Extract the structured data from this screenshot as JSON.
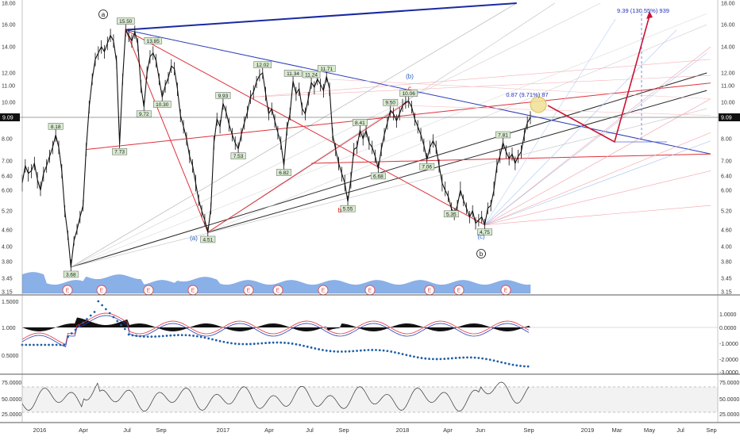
{
  "chart_data": {
    "type": "line",
    "current_price": "9.09",
    "y_axis_ticks": [
      "18.00",
      "16.00",
      "14.00",
      "12.00",
      "11.00",
      "10.00",
      "9.09",
      "8.00",
      "7.00",
      "6.40",
      "6.00",
      "5.20",
      "4.60",
      "4.00",
      "3.80",
      "3.45",
      "3.15"
    ],
    "x_axis_ticks": [
      "2016",
      "Apr",
      "Jul",
      "Sep",
      "2017",
      "Apr",
      "Jul",
      "Sep",
      "2018",
      "Apr",
      "Jun",
      "Sep",
      "2019",
      "Mar",
      "May",
      "Jul",
      "Sep"
    ],
    "series": [
      {
        "values": [
          [
            0,
            6.2
          ],
          [
            4,
            6.8
          ],
          [
            8,
            6.5
          ],
          [
            12,
            6.6
          ],
          [
            16,
            6.9
          ],
          [
            20,
            6.3
          ],
          [
            24,
            6.0
          ],
          [
            28,
            6.5
          ],
          [
            32,
            6.8
          ],
          [
            36,
            7.2
          ],
          [
            40,
            7.6
          ],
          [
            44,
            8.18
          ],
          [
            48,
            7.6
          ],
          [
            52,
            6.6
          ],
          [
            56,
            5.2
          ],
          [
            60,
            4.4
          ],
          [
            64,
            3.68
          ],
          [
            68,
            4.2
          ],
          [
            72,
            4.6
          ],
          [
            76,
            5.0
          ],
          [
            80,
            5.4
          ],
          [
            84,
            7.5
          ],
          [
            88,
            9.7
          ],
          [
            92,
            11.5
          ],
          [
            96,
            13.0
          ],
          [
            100,
            13.5
          ],
          [
            104,
            14.0
          ],
          [
            108,
            13.6
          ],
          [
            112,
            14.3
          ],
          [
            116,
            15.0
          ],
          [
            120,
            14.5
          ],
          [
            124,
            12.8
          ],
          [
            128,
            7.73
          ],
          [
            132,
            11.5
          ],
          [
            136,
            15.5
          ],
          [
            140,
            15.0
          ],
          [
            144,
            14.5
          ],
          [
            148,
            15.3
          ],
          [
            152,
            14.2
          ],
          [
            156,
            11.0
          ],
          [
            160,
            9.72
          ],
          [
            164,
            12.0
          ],
          [
            168,
            13.2
          ],
          [
            172,
            13.5
          ],
          [
            176,
            12.9
          ],
          [
            180,
            11.5
          ],
          [
            184,
            10.3
          ],
          [
            188,
            11.0
          ],
          [
            192,
            11.6
          ],
          [
            196,
            12.5
          ],
          [
            200,
            12.3
          ],
          [
            204,
            10.8
          ],
          [
            208,
            9.2
          ],
          [
            212,
            8.6
          ],
          [
            216,
            8.0
          ],
          [
            220,
            7.2
          ],
          [
            224,
            6.8
          ],
          [
            228,
            6.2
          ],
          [
            232,
            5.6
          ],
          [
            236,
            5.2
          ],
          [
            240,
            4.9
          ],
          [
            244,
            4.51
          ],
          [
            248,
            5.3
          ],
          [
            252,
            7.8
          ],
          [
            256,
            9.0
          ],
          [
            260,
            8.6
          ],
          [
            264,
            9.93
          ],
          [
            268,
            9.4
          ],
          [
            272,
            8.7
          ],
          [
            276,
            8.2
          ],
          [
            280,
            7.8
          ],
          [
            284,
            7.53
          ],
          [
            288,
            8.2
          ],
          [
            292,
            8.8
          ],
          [
            296,
            9.4
          ],
          [
            300,
            10.3
          ],
          [
            304,
            10.6
          ],
          [
            308,
            11.3
          ],
          [
            312,
            11.8
          ],
          [
            316,
            12.0
          ],
          [
            320,
            10.5
          ],
          [
            324,
            9.3
          ],
          [
            328,
            9.6
          ],
          [
            332,
            8.9
          ],
          [
            336,
            8.3
          ],
          [
            340,
            7.8
          ],
          [
            344,
            6.82
          ],
          [
            348,
            8.5
          ],
          [
            352,
            9.3
          ],
          [
            356,
            11.34
          ],
          [
            360,
            10.5
          ],
          [
            364,
            10.8
          ],
          [
            368,
            9.6
          ],
          [
            372,
            9.3
          ],
          [
            376,
            10.2
          ],
          [
            380,
            11.24
          ],
          [
            384,
            10.9
          ],
          [
            388,
            11.5
          ],
          [
            392,
            11.1
          ],
          [
            396,
            10.7
          ],
          [
            400,
            11.71
          ],
          [
            404,
            10.8
          ],
          [
            408,
            8.2
          ],
          [
            412,
            7.5
          ],
          [
            416,
            6.9
          ],
          [
            420,
            6.5
          ],
          [
            424,
            6.2
          ],
          [
            428,
            5.55
          ],
          [
            432,
            6.3
          ],
          [
            436,
            7.5
          ],
          [
            440,
            7.6
          ],
          [
            444,
            8.41
          ],
          [
            448,
            8.0
          ],
          [
            452,
            8.4
          ],
          [
            456,
            7.8
          ],
          [
            460,
            7.6
          ],
          [
            464,
            7.2
          ],
          [
            468,
            6.68
          ],
          [
            472,
            7.5
          ],
          [
            476,
            8.2
          ],
          [
            480,
            8.8
          ],
          [
            484,
            9.5
          ],
          [
            488,
            9.3
          ],
          [
            492,
            8.9
          ],
          [
            496,
            9.3
          ],
          [
            500,
            9.8
          ],
          [
            504,
            10.0
          ],
          [
            508,
            10.06
          ],
          [
            512,
            9.7
          ],
          [
            516,
            9.0
          ],
          [
            520,
            8.6
          ],
          [
            524,
            8.2
          ],
          [
            528,
            7.7
          ],
          [
            532,
            7.06
          ],
          [
            536,
            7.6
          ],
          [
            540,
            7.9
          ],
          [
            544,
            7.6
          ],
          [
            548,
            6.8
          ],
          [
            552,
            6.2
          ],
          [
            556,
            6.0
          ],
          [
            560,
            5.75
          ],
          [
            564,
            5.3
          ],
          [
            568,
            5.1
          ],
          [
            572,
            5.4
          ],
          [
            576,
            6.0
          ],
          [
            580,
            5.6
          ],
          [
            584,
            5.3
          ],
          [
            588,
            5.0
          ],
          [
            592,
            5.2
          ],
          [
            596,
            4.8
          ],
          [
            600,
            4.9
          ],
          [
            604,
            5.0
          ],
          [
            608,
            4.75
          ],
          [
            612,
            5.3
          ],
          [
            616,
            5.4
          ],
          [
            620,
            6.0
          ],
          [
            624,
            6.8
          ],
          [
            628,
            7.2
          ],
          [
            632,
            7.81
          ],
          [
            636,
            7.4
          ],
          [
            640,
            7.1
          ],
          [
            644,
            7.3
          ],
          [
            648,
            6.9
          ],
          [
            652,
            7.2
          ],
          [
            656,
            7.4
          ],
          [
            660,
            8.2
          ],
          [
            664,
            8.8
          ],
          [
            668,
            9.09
          ]
        ]
      }
    ],
    "price_labels": [
      "8.18",
      "3.68",
      "7.73",
      "15.50",
      "13.85",
      "9.72",
      "10.30",
      "4.51",
      "9.93",
      "7.53",
      "12.02",
      "6.82",
      "11.34",
      "11.24",
      "11.71",
      "5.55",
      "8.41",
      "6.68",
      "9.50",
      "10.06",
      "7.06",
      "5.35",
      "4.75",
      "7.81"
    ],
    "wave_labels": [
      "a",
      "(a)",
      "b",
      "c",
      "(b)",
      "(c)",
      "b"
    ],
    "projection_labels": [
      "9.39 (130.55%) 939",
      "0.87 (9.71%) 87"
    ],
    "earnings_markers": [
      "E",
      "E",
      "E",
      "E",
      "E",
      "E",
      "E",
      "E",
      "E",
      "E",
      "E",
      "E"
    ],
    "indicator_1_ticks_left": [
      "1.5000",
      "1.000",
      "0.5000"
    ],
    "indicator_1_ticks_right": [
      "1.0000",
      "0.0000",
      "-1.0000",
      "-2.0000",
      "-3.0000"
    ],
    "indicator_2_ticks_left": [
      "75.0000",
      "50.0000",
      "25.0000"
    ],
    "indicator_2_ticks_right": [
      "75.0000",
      "50.0000",
      "25.0000"
    ]
  },
  "colors": {
    "price_line": "#111111",
    "red_trend": "#e0303a",
    "blue_trend": "#2a3cb8",
    "black_trend": "#2b2b2b",
    "volume": "#8ab0e8",
    "projection": "#cc1133",
    "indicator_dots": "#1f5fa8"
  }
}
